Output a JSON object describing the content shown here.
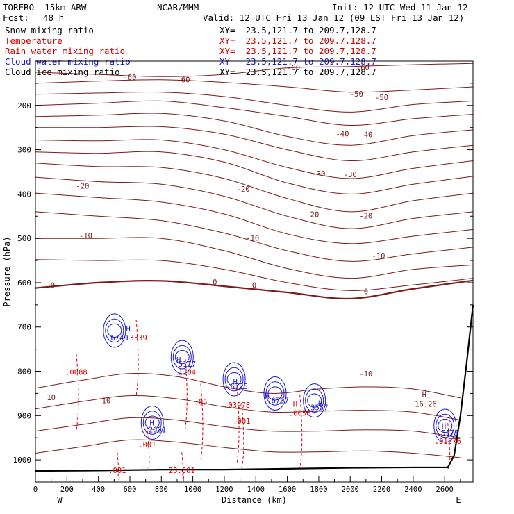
{
  "header": {
    "model": "TORERO  15km ARW",
    "org": "NCAR/MMM",
    "init": "Init: 12 UTC Wed 11 Jan 12",
    "fcst_label": "Fcst:",
    "fcst_value": "48 h",
    "valid": "Valid: 12 UTC Fri 13 Jan 12 (09 LST Fri 13 Jan 12)"
  },
  "legend": [
    {
      "label": "Snow mixing ratio",
      "xy": "XY=  23.5,121.7 to 209.7,128.7",
      "color": "#000000"
    },
    {
      "label": "Temperature",
      "xy": "XY=  23.5,121.7 to 209.7,128.7",
      "color": "#cc0000"
    },
    {
      "label": "Rain water mixing ratio",
      "xy": "XY=  23.5,121.7 to 209.7,128.7",
      "color": "#cc0000"
    },
    {
      "label": "Cloud water mixing ratio",
      "xy": "XY=  23.5,121.7 to 209.7,128.7",
      "color": "#1a1acc"
    },
    {
      "label": "Cloud ice mixing ratio",
      "xy": "XY=  23.5,121.7 to 209.7,128.7",
      "color": "#000000"
    }
  ],
  "chart_data": {
    "type": "line",
    "title": "",
    "xlabel": "Distance (km)",
    "ylabel": "Pressure (hPa)",
    "xlim": [
      0,
      2780
    ],
    "ylim": [
      1050,
      100
    ],
    "x_ticks": [
      0,
      200,
      400,
      600,
      800,
      1000,
      1200,
      1400,
      1600,
      1800,
      2000,
      2200,
      2400,
      2600
    ],
    "y_ticks": [
      200,
      300,
      400,
      500,
      600,
      700,
      800,
      900,
      1000
    ],
    "x_end_labels": {
      "left": "W",
      "right": "E"
    },
    "colors": {
      "temperature": "#7a1a1a",
      "rain": "#dd0000",
      "cloud": "#1a1acc",
      "terrain": "#000000"
    },
    "isotherms": [
      {
        "value": -60,
        "p": [
          [
            0,
            125
          ],
          [
            400,
            130
          ],
          [
            800,
            135
          ],
          [
            1200,
            130
          ],
          [
            1600,
            115
          ],
          [
            2000,
            112
          ],
          [
            2400,
            108
          ],
          [
            2780,
            105
          ]
        ]
      },
      {
        "value": -60,
        "p": [
          [
            0,
            150
          ],
          [
            400,
            145
          ],
          [
            800,
            142
          ],
          [
            1200,
            148
          ],
          [
            1600,
            158
          ],
          [
            2000,
            170
          ],
          [
            2400,
            165
          ],
          [
            2780,
            158
          ]
        ]
      },
      {
        "value": -50,
        "p": [
          [
            0,
            175
          ],
          [
            400,
            172
          ],
          [
            800,
            170
          ],
          [
            1200,
            180
          ],
          [
            1600,
            200
          ],
          [
            2000,
            215
          ],
          [
            2400,
            198
          ],
          [
            2780,
            190
          ]
        ]
      },
      {
        "value": -50,
        "p": [
          [
            0,
            200
          ],
          [
            400,
            195
          ],
          [
            800,
            190
          ],
          [
            1200,
            205
          ],
          [
            1600,
            225
          ],
          [
            2000,
            245
          ],
          [
            2400,
            230
          ],
          [
            2780,
            220
          ]
        ]
      },
      {
        "value": -40,
        "p": [
          [
            0,
            225
          ],
          [
            400,
            222
          ],
          [
            800,
            218
          ],
          [
            1200,
            235
          ],
          [
            1600,
            270
          ],
          [
            2000,
            290
          ],
          [
            2400,
            268
          ],
          [
            2780,
            255
          ]
        ]
      },
      {
        "value": -40,
        "p": [
          [
            0,
            250
          ],
          [
            400,
            250
          ],
          [
            800,
            248
          ],
          [
            1200,
            265
          ],
          [
            1600,
            300
          ],
          [
            2000,
            325
          ],
          [
            2400,
            305
          ],
          [
            2780,
            290
          ]
        ]
      },
      {
        "value": -30,
        "p": [
          [
            0,
            278
          ],
          [
            400,
            280
          ],
          [
            800,
            278
          ],
          [
            1200,
            300
          ],
          [
            1600,
            340
          ],
          [
            2000,
            365
          ],
          [
            2400,
            342
          ],
          [
            2780,
            325
          ]
        ]
      },
      {
        "value": -30,
        "p": [
          [
            0,
            305
          ],
          [
            400,
            308
          ],
          [
            800,
            305
          ],
          [
            1200,
            328
          ],
          [
            1600,
            375
          ],
          [
            2000,
            400
          ],
          [
            2400,
            378
          ],
          [
            2780,
            360
          ]
        ]
      },
      {
        "value": -20,
        "p": [
          [
            0,
            330
          ],
          [
            400,
            338
          ],
          [
            800,
            340
          ],
          [
            1200,
            365
          ],
          [
            1600,
            410
          ],
          [
            2000,
            440
          ],
          [
            2400,
            415
          ],
          [
            2780,
            398
          ]
        ]
      },
      {
        "value": -20,
        "p": [
          [
            0,
            362
          ],
          [
            400,
            372
          ],
          [
            800,
            378
          ],
          [
            1200,
            405
          ],
          [
            1600,
            450
          ],
          [
            2000,
            478
          ],
          [
            2400,
            455
          ],
          [
            2780,
            440
          ]
        ]
      },
      {
        "value": -10,
        "p": [
          [
            0,
            398
          ],
          [
            400,
            408
          ],
          [
            800,
            418
          ],
          [
            1200,
            445
          ],
          [
            1600,
            490
          ],
          [
            2000,
            512
          ],
          [
            2400,
            495
          ],
          [
            2780,
            480
          ]
        ]
      },
      {
        "value": -10,
        "p": [
          [
            0,
            440
          ],
          [
            400,
            450
          ],
          [
            800,
            460
          ],
          [
            1200,
            488
          ],
          [
            1600,
            528
          ],
          [
            2000,
            552
          ],
          [
            2400,
            535
          ],
          [
            2780,
            520
          ]
        ]
      },
      {
        "value": -10,
        "p": [
          [
            0,
            500
          ],
          [
            400,
            500
          ],
          [
            800,
            500
          ],
          [
            1200,
            528
          ],
          [
            1600,
            568
          ],
          [
            2000,
            590
          ],
          [
            2400,
            570
          ],
          [
            2780,
            560
          ]
        ]
      },
      {
        "value": -10,
        "p": [
          [
            0,
            548
          ],
          [
            400,
            550
          ],
          [
            800,
            550
          ],
          [
            1200,
            570
          ],
          [
            1600,
            600
          ],
          [
            2000,
            618
          ],
          [
            2400,
            605
          ],
          [
            2780,
            590
          ]
        ]
      },
      {
        "value": 0,
        "p": [
          [
            0,
            612
          ],
          [
            400,
            600
          ],
          [
            800,
            596
          ],
          [
            1200,
            608
          ],
          [
            1600,
            622
          ],
          [
            2000,
            636
          ],
          [
            2400,
            614
          ],
          [
            2780,
            595
          ]
        ],
        "bold": true
      },
      {
        "value": 10,
        "p": [
          [
            0,
            838
          ],
          [
            300,
            820
          ],
          [
            600,
            805
          ],
          [
            900,
            812
          ],
          [
            1200,
            835
          ],
          [
            1500,
            850
          ],
          [
            1800,
            840
          ],
          [
            2100,
            835
          ],
          [
            2400,
            840
          ],
          [
            2700,
            860
          ]
        ]
      },
      {
        "value": 10,
        "p": [
          [
            0,
            885
          ],
          [
            300,
            868
          ],
          [
            600,
            855
          ],
          [
            900,
            862
          ],
          [
            1200,
            880
          ],
          [
            1500,
            892
          ],
          [
            1800,
            890
          ],
          [
            2100,
            888
          ],
          [
            2400,
            892
          ],
          [
            2700,
            910
          ]
        ]
      },
      {
        "value": 10,
        "p": [
          [
            0,
            935
          ],
          [
            300,
            920
          ],
          [
            600,
            905
          ],
          [
            900,
            910
          ],
          [
            1200,
            925
          ],
          [
            1500,
            935
          ],
          [
            1800,
            935
          ],
          [
            2100,
            932
          ],
          [
            2400,
            935
          ],
          [
            2700,
            950
          ]
        ]
      },
      {
        "value": 10,
        "p": [
          [
            0,
            985
          ],
          [
            300,
            970
          ],
          [
            600,
            955
          ],
          [
            900,
            960
          ],
          [
            1200,
            972
          ],
          [
            1500,
            982
          ],
          [
            1800,
            982
          ],
          [
            2100,
            980
          ],
          [
            2400,
            985
          ],
          [
            2700,
            995
          ]
        ]
      }
    ],
    "terrain": [
      [
        0,
        1025
      ],
      [
        400,
        1024
      ],
      [
        800,
        1022
      ],
      [
        1200,
        1022
      ],
      [
        1600,
        1020
      ],
      [
        2000,
        1018
      ],
      [
        2400,
        1017
      ],
      [
        2620,
        1017
      ],
      [
        2660,
        990
      ],
      [
        2700,
        900
      ],
      [
        2740,
        780
      ],
      [
        2780,
        650
      ]
    ],
    "temp_labels": [
      {
        "t": "-60",
        "x": 600,
        "p": 142
      },
      {
        "t": "-60",
        "x": 940,
        "p": 148
      },
      {
        "t": "-60",
        "x": 1640,
        "p": 120
      },
      {
        "t": "-60",
        "x": 2080,
        "p": 120
      },
      {
        "t": "-50",
        "x": 2040,
        "p": 180
      },
      {
        "t": "-50",
        "x": 2200,
        "p": 188
      },
      {
        "t": "-40",
        "x": 1950,
        "p": 270
      },
      {
        "t": "-40",
        "x": 2100,
        "p": 272
      },
      {
        "t": "-30",
        "x": 1800,
        "p": 360
      },
      {
        "t": "-30",
        "x": 2000,
        "p": 362
      },
      {
        "t": "-20",
        "x": 300,
        "p": 388
      },
      {
        "t": "-20",
        "x": 1320,
        "p": 395
      },
      {
        "t": "-20",
        "x": 1760,
        "p": 452
      },
      {
        "t": "-20",
        "x": 2100,
        "p": 455
      },
      {
        "t": "-10",
        "x": 320,
        "p": 500
      },
      {
        "t": "-10",
        "x": 1380,
        "p": 505
      },
      {
        "t": "-10",
        "x": 2180,
        "p": 545
      },
      {
        "t": "-10",
        "x": 2100,
        "p": 812
      },
      {
        "t": "0",
        "x": 110,
        "p": 612
      },
      {
        "t": "0",
        "x": 1140,
        "p": 605
      },
      {
        "t": "0",
        "x": 1390,
        "p": 612
      },
      {
        "t": "0",
        "x": 2100,
        "p": 626
      },
      {
        "t": "10",
        "x": 100,
        "p": 865
      },
      {
        "t": "10",
        "x": 450,
        "p": 872
      }
    ],
    "cloud_labels": [
      {
        "t": ".6749",
        "x": 520,
        "p": 730
      },
      {
        "t": ".5117",
        "x": 950,
        "p": 790
      },
      {
        "t": ".6725",
        "x": 1280,
        "p": 840
      },
      {
        "t": ".6797",
        "x": 1540,
        "p": 872
      },
      {
        "t": ".3557",
        "x": 1790,
        "p": 888
      },
      {
        "t": ".2601",
        "x": 760,
        "p": 938
      },
      {
        "t": ".5175",
        "x": 2620,
        "p": 945
      }
    ],
    "rain_labels": [
      {
        "t": ".3339",
        "x": 640,
        "p": 730
      },
      {
        "t": ".0088",
        "x": 260,
        "p": 808
      },
      {
        "t": ".1104",
        "x": 950,
        "p": 808
      },
      {
        "t": ".03978",
        "x": 1280,
        "p": 882
      },
      {
        "t": ".001",
        "x": 1310,
        "p": 918
      },
      {
        "t": ".05",
        "x": 1050,
        "p": 875
      },
      {
        "t": ".001",
        "x": 710,
        "p": 972
      },
      {
        "t": ".0056",
        "x": 1680,
        "p": 900
      },
      {
        "t": ".01276",
        "x": 2620,
        "p": 964
      },
      {
        "t": ".001",
        "x": 520,
        "p": 1030
      },
      {
        "t": "20.001",
        "x": 930,
        "p": 1030
      }
    ],
    "highs": [
      {
        "t": "H",
        "x": 590,
        "p": 710,
        "c": "#1a1acc"
      },
      {
        "t": "H",
        "x": 910,
        "p": 780,
        "c": "#1a1acc"
      },
      {
        "t": "H",
        "x": 1270,
        "p": 830,
        "c": "#1a1acc"
      },
      {
        "t": "H",
        "x": 1470,
        "p": 862,
        "c": "#1a1acc"
      },
      {
        "t": "H",
        "x": 1810,
        "p": 878,
        "c": "#1a1acc"
      },
      {
        "t": "H",
        "x": 740,
        "p": 922,
        "c": "#1a1acc"
      },
      {
        "t": "H",
        "x": 2595,
        "p": 930,
        "c": "#1a1acc"
      },
      {
        "t": "H",
        "x": 1650,
        "p": 880,
        "c": "#dd0000"
      },
      {
        "t": "H",
        "x": 2470,
        "p": 858,
        "c": "#7a1a1a"
      },
      {
        "t": "16.26",
        "x": 2480,
        "p": 880,
        "c": "#7a1a1a"
      }
    ]
  }
}
